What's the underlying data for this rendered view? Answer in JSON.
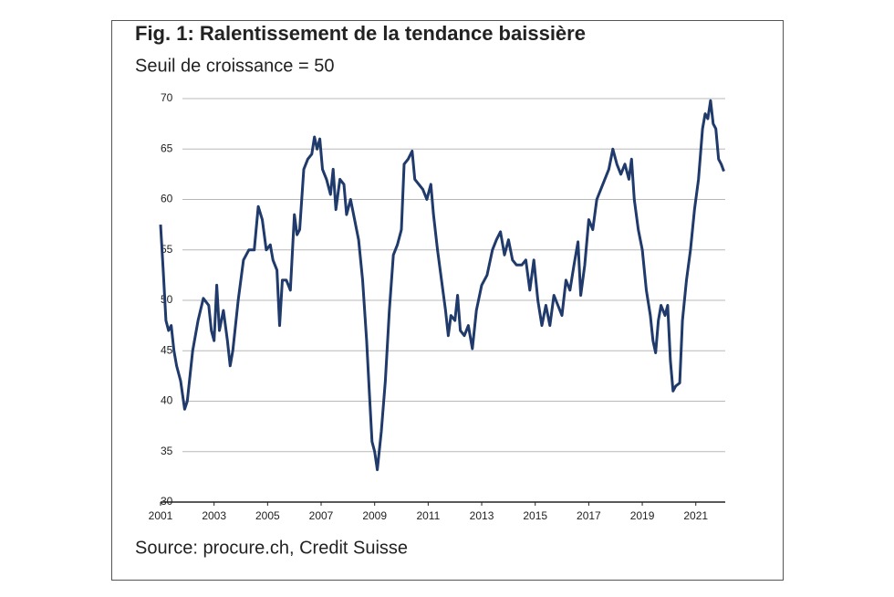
{
  "chart_data": {
    "type": "line",
    "title": "Fig. 1: Ralentissement de la tendance baissière",
    "subtitle": "Seuil de croissance = 50",
    "source": "Source: procure.ch, Credit Suisse",
    "x": [
      2001.0,
      2001.1,
      2001.2,
      2001.3,
      2001.4,
      2001.5,
      2001.6,
      2001.75,
      2001.9,
      2002.0,
      2002.2,
      2002.4,
      2002.6,
      2002.8,
      2002.9,
      2003.0,
      2003.1,
      2003.2,
      2003.35,
      2003.5,
      2003.6,
      2003.7,
      2003.9,
      2004.1,
      2004.3,
      2004.5,
      2004.65,
      2004.8,
      2004.95,
      2005.1,
      2005.2,
      2005.35,
      2005.45,
      2005.55,
      2005.7,
      2005.85,
      2006.0,
      2006.1,
      2006.2,
      2006.35,
      2006.5,
      2006.65,
      2006.75,
      2006.85,
      2006.95,
      2007.05,
      2007.2,
      2007.35,
      2007.45,
      2007.55,
      2007.7,
      2007.85,
      2007.95,
      2008.1,
      2008.25,
      2008.4,
      2008.55,
      2008.7,
      2008.8,
      2008.9,
      2009.0,
      2009.1,
      2009.25,
      2009.4,
      2009.55,
      2009.7,
      2009.85,
      2010.0,
      2010.1,
      2010.25,
      2010.4,
      2010.5,
      2010.65,
      2010.8,
      2010.95,
      2011.1,
      2011.2,
      2011.35,
      2011.5,
      2011.65,
      2011.75,
      2011.85,
      2012.0,
      2012.1,
      2012.2,
      2012.35,
      2012.5,
      2012.65,
      2012.8,
      2013.0,
      2013.2,
      2013.4,
      2013.55,
      2013.7,
      2013.85,
      2014.0,
      2014.15,
      2014.3,
      2014.5,
      2014.65,
      2014.8,
      2014.95,
      2015.1,
      2015.25,
      2015.4,
      2015.55,
      2015.7,
      2015.85,
      2016.0,
      2016.15,
      2016.3,
      2016.45,
      2016.6,
      2016.7,
      2016.85,
      2017.0,
      2017.15,
      2017.3,
      2017.45,
      2017.6,
      2017.75,
      2017.9,
      2018.05,
      2018.2,
      2018.35,
      2018.5,
      2018.6,
      2018.7,
      2018.85,
      2019.0,
      2019.15,
      2019.3,
      2019.4,
      2019.5,
      2019.6,
      2019.7,
      2019.85,
      2019.95,
      2020.05,
      2020.15,
      2020.25,
      2020.4,
      2020.5,
      2020.65,
      2020.8,
      2020.95,
      2021.1,
      2021.25,
      2021.35,
      2021.45,
      2021.55,
      2021.65,
      2021.75,
      2021.85,
      2021.95,
      2022.05
    ],
    "values": [
      57.5,
      53,
      48,
      47,
      47.5,
      45,
      43.5,
      42,
      39.2,
      40,
      45,
      48,
      50.2,
      49.5,
      47,
      46,
      51.5,
      47,
      49,
      46,
      43.5,
      45,
      50,
      54,
      55,
      55,
      59.3,
      58,
      55,
      55.5,
      54,
      53,
      47.5,
      52,
      52,
      51,
      58.5,
      56.5,
      57,
      63,
      64,
      64.5,
      66.2,
      65,
      66,
      63,
      62,
      60.5,
      63,
      59,
      62,
      61.5,
      58.5,
      60,
      58,
      56,
      52,
      46,
      41,
      36,
      35,
      33.2,
      37,
      42,
      49,
      54.5,
      55.5,
      57,
      63.5,
      64,
      64.8,
      62,
      61.5,
      61,
      60,
      61.5,
      58.5,
      55,
      52,
      49,
      46.5,
      48.5,
      48,
      50.5,
      47,
      46.5,
      47.5,
      45.2,
      49,
      51.5,
      52.5,
      55,
      56,
      56.8,
      54.5,
      56,
      54,
      53.5,
      53.5,
      54,
      51,
      54,
      50,
      47.5,
      49.5,
      47.5,
      50.5,
      49.5,
      48.5,
      52,
      51,
      53.5,
      55.8,
      50.5,
      53.5,
      58,
      57,
      60,
      61,
      62,
      63,
      65,
      63.5,
      62.5,
      63.5,
      62,
      64,
      60,
      57,
      55,
      51,
      48.5,
      46,
      44.8,
      48,
      49.5,
      48.5,
      49.5,
      44,
      41,
      41.5,
      41.8,
      48,
      52,
      55,
      59,
      62,
      67,
      68.5,
      68,
      69.8,
      67.5,
      67,
      64,
      63.5,
      62.8
    ],
    "color": "#1f3a6b",
    "xlim": [
      2001,
      2022.1
    ],
    "xticks": [
      2001,
      2003,
      2005,
      2007,
      2009,
      2011,
      2013,
      2015,
      2017,
      2019,
      2021
    ],
    "ylim": [
      30,
      70
    ],
    "yticks": [
      30,
      35,
      40,
      45,
      50,
      55,
      60,
      65,
      70
    ],
    "grid": true
  }
}
